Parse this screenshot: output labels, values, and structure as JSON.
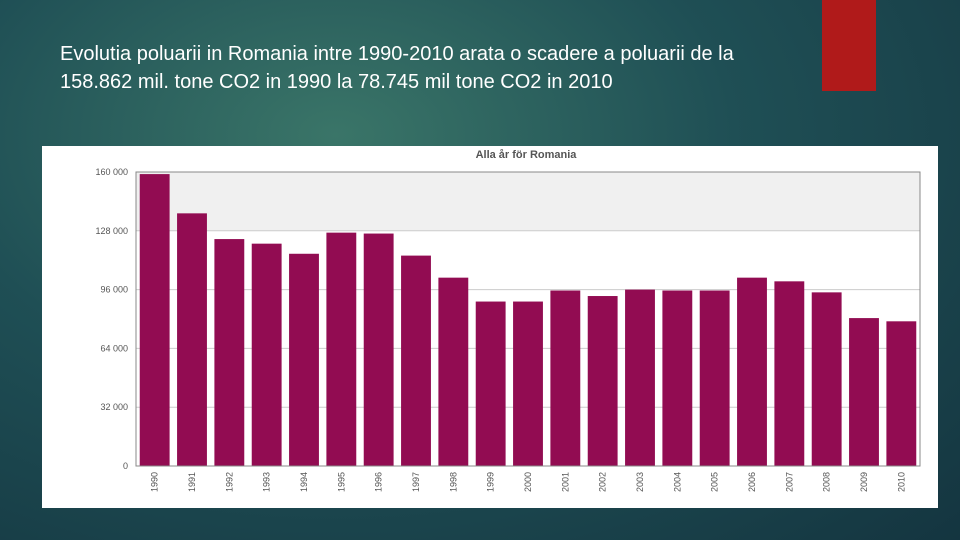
{
  "slide": {
    "title": "Evolutia poluarii in Romania intre 1990-2010 arata o scadere a poluarii de la 158.862 mil. tone CO2 in 1990 la 78.745 mil tone CO2 in 2010",
    "accent_color": "#b01a1a"
  },
  "chart_data": {
    "type": "bar",
    "title": "Alla år för Romania",
    "xlabel": "",
    "ylabel": "",
    "ylim": [
      0,
      160000
    ],
    "yticks": [
      0,
      32000,
      64000,
      96000,
      128000,
      160000
    ],
    "ytick_labels": [
      "0",
      "32 000",
      "64 000",
      "96 000",
      "128 000",
      "160 000"
    ],
    "categories": [
      "1990",
      "1991",
      "1992",
      "1993",
      "1994",
      "1995",
      "1996",
      "1997",
      "1998",
      "1999",
      "2000",
      "2001",
      "2002",
      "2003",
      "2004",
      "2005",
      "2006",
      "2007",
      "2008",
      "2009",
      "2010"
    ],
    "values": [
      158862,
      137500,
      123500,
      121000,
      115500,
      127000,
      126500,
      114500,
      102500,
      89500,
      89500,
      95500,
      92500,
      96000,
      95500,
      95500,
      102500,
      100500,
      94500,
      80500,
      78745
    ],
    "bar_color": "#920c52",
    "band_color": "#f0f0f0",
    "grid": true
  }
}
